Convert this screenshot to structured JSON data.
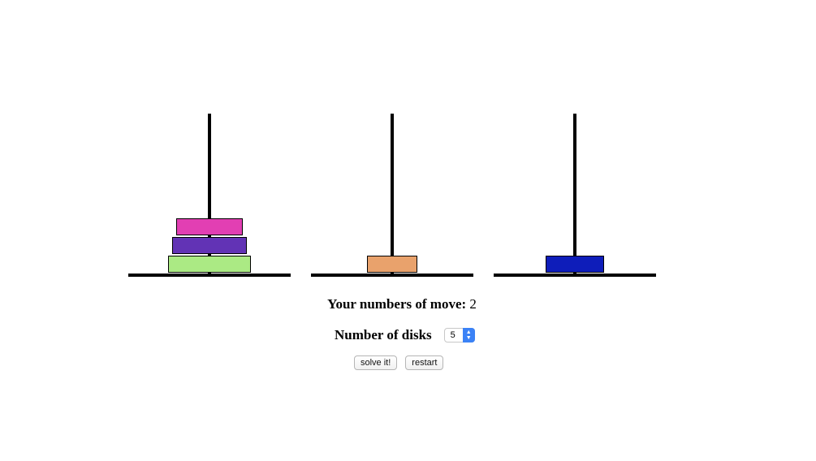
{
  "game": {
    "towers": [
      {
        "name": "tower-1",
        "disks": [
          {
            "size": 5,
            "color": "#abea84"
          },
          {
            "size": 4,
            "color": "#6233b5"
          },
          {
            "size": 3,
            "color": "#e23fb3"
          }
        ]
      },
      {
        "name": "tower-2",
        "disks": [
          {
            "size": 2,
            "color": "#e9a26c"
          }
        ]
      },
      {
        "name": "tower-3",
        "disks": [
          {
            "size": 1,
            "color": "#0e1dba"
          }
        ]
      }
    ]
  },
  "moves": {
    "label": "Your numbers of move:",
    "value": "2"
  },
  "disks_control": {
    "label": "Number of disks",
    "selected": "5"
  },
  "buttons": {
    "solve": "solve it!",
    "restart": "restart"
  }
}
